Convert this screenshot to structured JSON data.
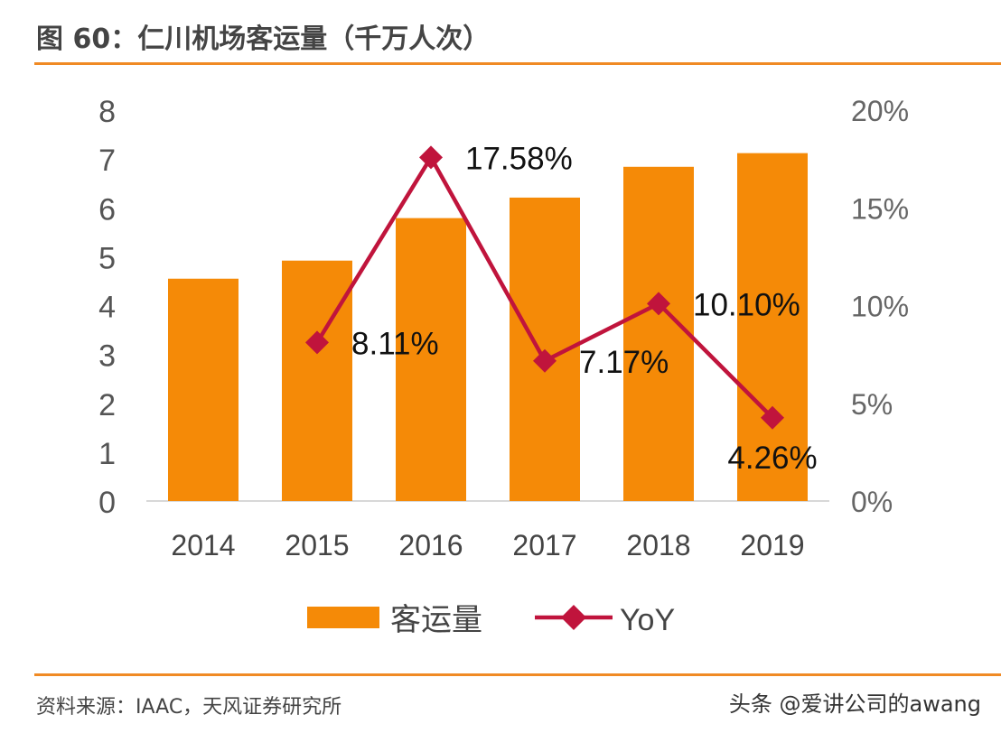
{
  "title": "图 60：仁川机场客运量（千万人次）",
  "source": "资料来源：IAAC，天风证券研究所",
  "watermark": "头条 @爱讲公司的awang",
  "chart_data": {
    "type": "bar+line",
    "categories": [
      "2014",
      "2015",
      "2016",
      "2017",
      "2018",
      "2019"
    ],
    "series": [
      {
        "name": "客运量",
        "type": "bar",
        "axis": "left",
        "color": "#F58A07",
        "values": [
          4.55,
          4.92,
          5.79,
          6.21,
          6.84,
          7.12
        ]
      },
      {
        "name": "YoY",
        "type": "line",
        "axis": "right",
        "color": "#C0143C",
        "marker": "diamond",
        "values": [
          null,
          8.11,
          17.58,
          7.17,
          10.1,
          4.26
        ],
        "labels": [
          "",
          "8.11%",
          "17.58%",
          "7.17%",
          "10.10%",
          "4.26%"
        ]
      }
    ],
    "ylim_left": [
      0,
      8
    ],
    "yticks_left": [
      "0",
      "1",
      "2",
      "3",
      "4",
      "5",
      "6",
      "7",
      "8"
    ],
    "ylim_right": [
      0,
      20
    ],
    "yticks_right": [
      "0%",
      "5%",
      "10%",
      "15%",
      "20%"
    ],
    "grid": false,
    "legend": "bottom"
  }
}
